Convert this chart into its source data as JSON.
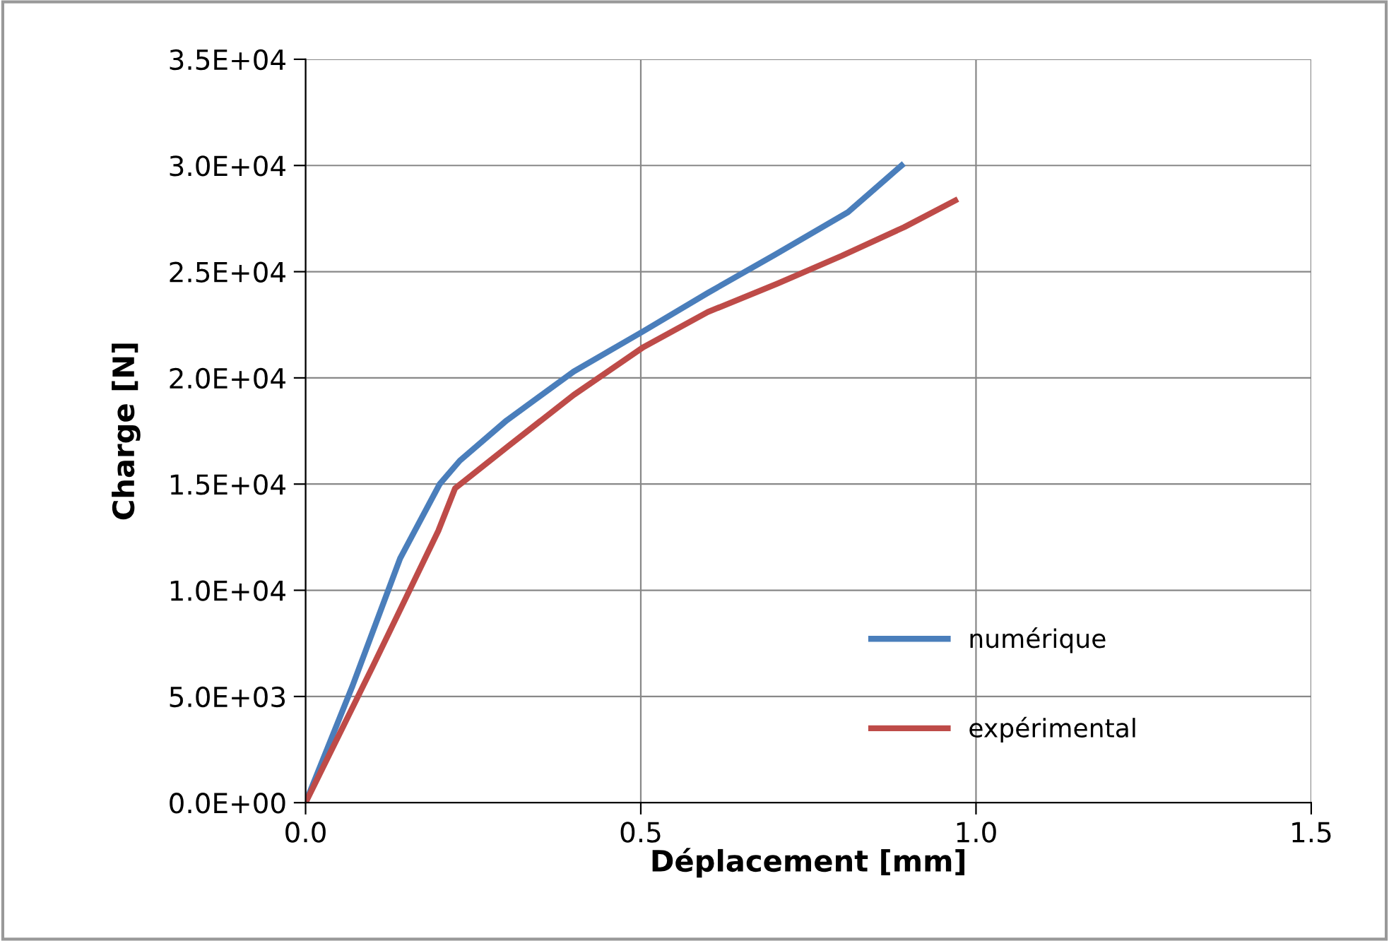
{
  "chart_data": {
    "type": "line",
    "xlabel": "Déplacement [mm]",
    "ylabel": "Charge [N]",
    "xlim": [
      0,
      1.5
    ],
    "xticks": [
      {
        "value": 0,
        "label": "0.0"
      },
      {
        "value": 0.5,
        "label": "0.5"
      },
      {
        "value": 1.0,
        "label": "1.0"
      },
      {
        "value": 1.5,
        "label": "1.5"
      }
    ],
    "ylim": [
      0,
      35000
    ],
    "yticks": [
      {
        "value": 0,
        "label": "0.0E+00"
      },
      {
        "value": 5000,
        "label": "5.0E+03"
      },
      {
        "value": 10000,
        "label": "1.0E+04"
      },
      {
        "value": 15000,
        "label": "1.5E+04"
      },
      {
        "value": 20000,
        "label": "2.0E+04"
      },
      {
        "value": 25000,
        "label": "2.5E+04"
      },
      {
        "value": 30000,
        "label": "3.0E+04"
      },
      {
        "value": 35000,
        "label": "3.5E+04"
      }
    ],
    "grid": true,
    "legend": "bottom right",
    "marker": "none",
    "line_style": "solid",
    "series": [
      {
        "name": "numérique",
        "color": "#4a7ebb",
        "x": [
          0,
          0.07,
          0.141,
          0.2,
          0.23,
          0.3,
          0.4,
          0.504,
          0.6,
          0.7,
          0.809,
          0.889
        ],
        "values": [
          0,
          5500,
          11500,
          15000,
          16100,
          18000,
          20300,
          22200,
          24000,
          25800,
          27800,
          30000
        ]
      },
      {
        "name": "expérimental",
        "color": "#be4b48",
        "x": [
          0,
          0.1,
          0.198,
          0.223,
          0.303,
          0.4,
          0.504,
          0.6,
          0.704,
          0.8,
          0.893,
          0.969
        ],
        "values": [
          0,
          6400,
          12800,
          14800,
          16800,
          19200,
          21450,
          23100,
          24440,
          25750,
          27100,
          28350
        ]
      }
    ]
  }
}
